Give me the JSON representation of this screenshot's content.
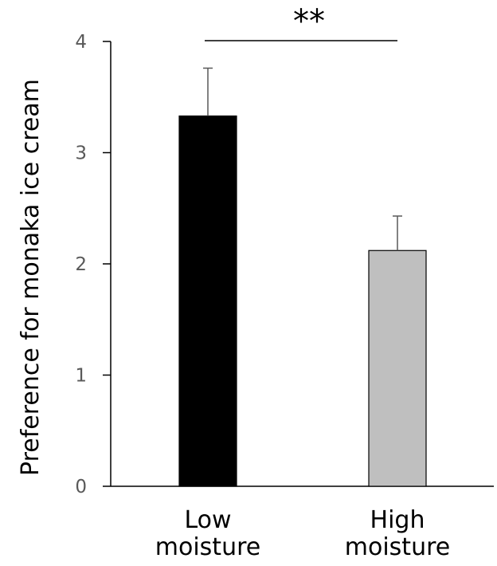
{
  "chart_data": {
    "type": "bar",
    "categories": [
      [
        "Low",
        "moisture"
      ],
      [
        "High",
        "moisture"
      ]
    ],
    "values": [
      3.33,
      2.12
    ],
    "errors": [
      0.43,
      0.31
    ],
    "colors": [
      "#000000",
      "#bfbfbf"
    ],
    "title": "",
    "xlabel": "",
    "ylabel": "Preference for monaka ice cream",
    "ylim": [
      0,
      4
    ],
    "yticks": [
      0,
      1,
      2,
      3,
      4
    ],
    "significance": {
      "label": "**",
      "between": [
        0,
        1
      ]
    },
    "grid": false,
    "legend": "none"
  }
}
